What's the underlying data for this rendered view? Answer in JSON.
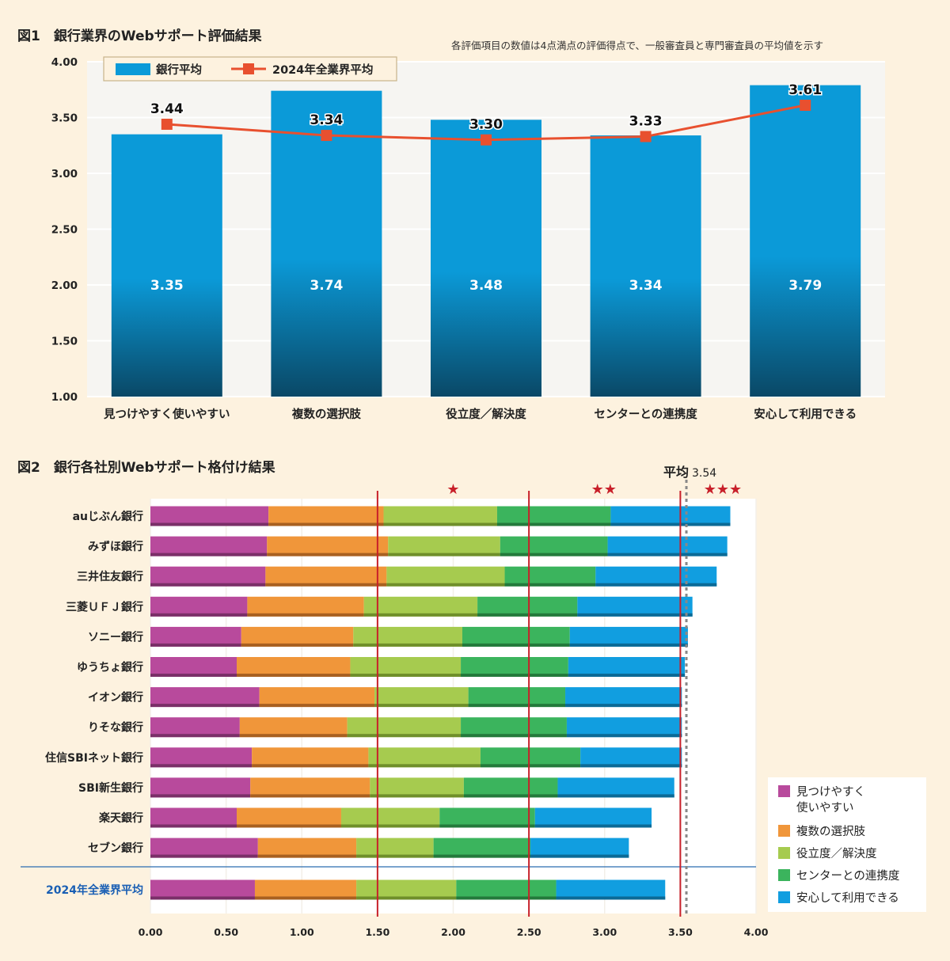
{
  "figure1": {
    "title": "図1　銀行業界のWebサポート評価結果",
    "note": "各評価項目の数値は4点満点の評価得点で、一般審査員と専門審査員の平均値を示す",
    "legend": {
      "bars": "銀行平均",
      "line": "2024年全業界平均"
    },
    "colors": {
      "bar": "#0b9ad8",
      "bar_dark": "#0a4e6e",
      "line": "#e8502f",
      "grid": "#ffffff",
      "plot_bg": "#f6f6f6"
    },
    "chart_data": {
      "type": "bar",
      "categories": [
        "見つけやすく使いやすい",
        "複数の選択肢",
        "役立度／解決度",
        "センターとの連携度",
        "安心して利用できる"
      ],
      "series": [
        {
          "name": "銀行平均",
          "type": "bar",
          "values": [
            3.35,
            3.74,
            3.48,
            3.34,
            3.79
          ]
        },
        {
          "name": "2024年全業界平均",
          "type": "line",
          "values": [
            3.44,
            3.34,
            3.3,
            3.33,
            3.61
          ]
        }
      ],
      "bar_labels": [
        "3.35",
        "3.74",
        "3.48",
        "3.34",
        "3.79"
      ],
      "line_labels": [
        "3.44",
        "3.34",
        "3.30",
        "3.33",
        "3.61"
      ],
      "ylim": [
        1.0,
        4.0
      ],
      "yticks": [
        "1.00",
        "1.50",
        "2.00",
        "2.50",
        "3.00",
        "3.50",
        "4.00"
      ],
      "legend_position": "top-left"
    }
  },
  "figure2": {
    "title": "図2　銀行各社別Webサポート格付け結果",
    "average_label": "平均",
    "average_value": "3.54",
    "stars": [
      "★",
      "★★",
      "★★★"
    ],
    "colors": {
      "segments": [
        "#b84a9c",
        "#f0963a",
        "#a6cb4f",
        "#3bb45d",
        "#119ee0"
      ],
      "segments_dark": [
        "#7a2f68",
        "#a86020",
        "#6f8f2a",
        "#237a3b",
        "#0b6a96"
      ],
      "threshold_line": "#c8202a",
      "average_line": "#888888",
      "separator": "#2b6cb0",
      "industry_label": "#1a5fb4"
    },
    "chart_data": {
      "type": "bar",
      "orientation": "horizontal",
      "stacked": true,
      "categories": [
        "auじぶん銀行",
        "みずほ銀行",
        "三井住友銀行",
        "三菱ＵＦＪ銀行",
        "ソニー銀行",
        "ゆうちょ銀行",
        "イオン銀行",
        "りそな銀行",
        "住信SBIネット銀行",
        "SBI新生銀行",
        "楽天銀行",
        "セブン銀行",
        "2024年全業界平均"
      ],
      "series": [
        {
          "name": "見つけやすく使いやすい",
          "values": [
            0.78,
            0.77,
            0.76,
            0.64,
            0.6,
            0.57,
            0.72,
            0.59,
            0.67,
            0.66,
            0.57,
            0.71,
            0.69
          ]
        },
        {
          "name": "複数の選択肢",
          "values": [
            0.76,
            0.8,
            0.8,
            0.77,
            0.74,
            0.75,
            0.76,
            0.71,
            0.77,
            0.79,
            0.69,
            0.65,
            0.67
          ]
        },
        {
          "name": "役立度／解決度",
          "values": [
            0.75,
            0.74,
            0.78,
            0.75,
            0.72,
            0.73,
            0.62,
            0.75,
            0.74,
            0.62,
            0.65,
            0.51,
            0.66
          ]
        },
        {
          "name": "センターとの連携度",
          "values": [
            0.75,
            0.71,
            0.6,
            0.66,
            0.71,
            0.71,
            0.64,
            0.7,
            0.66,
            0.62,
            0.63,
            0.64,
            0.66
          ]
        },
        {
          "name": "安心して利用できる",
          "values": [
            0.79,
            0.79,
            0.8,
            0.76,
            0.78,
            0.77,
            0.77,
            0.76,
            0.67,
            0.77,
            0.77,
            0.65,
            0.72
          ]
        }
      ],
      "xlim": [
        0,
        4
      ],
      "xticks": [
        "0.00",
        "0.50",
        "1.00",
        "1.50",
        "2.00",
        "2.50",
        "3.00",
        "3.50",
        "4.00"
      ],
      "thresholds": [
        1.5,
        2.5,
        3.5
      ],
      "average": 3.54,
      "legend_position": "bottom-right"
    }
  }
}
